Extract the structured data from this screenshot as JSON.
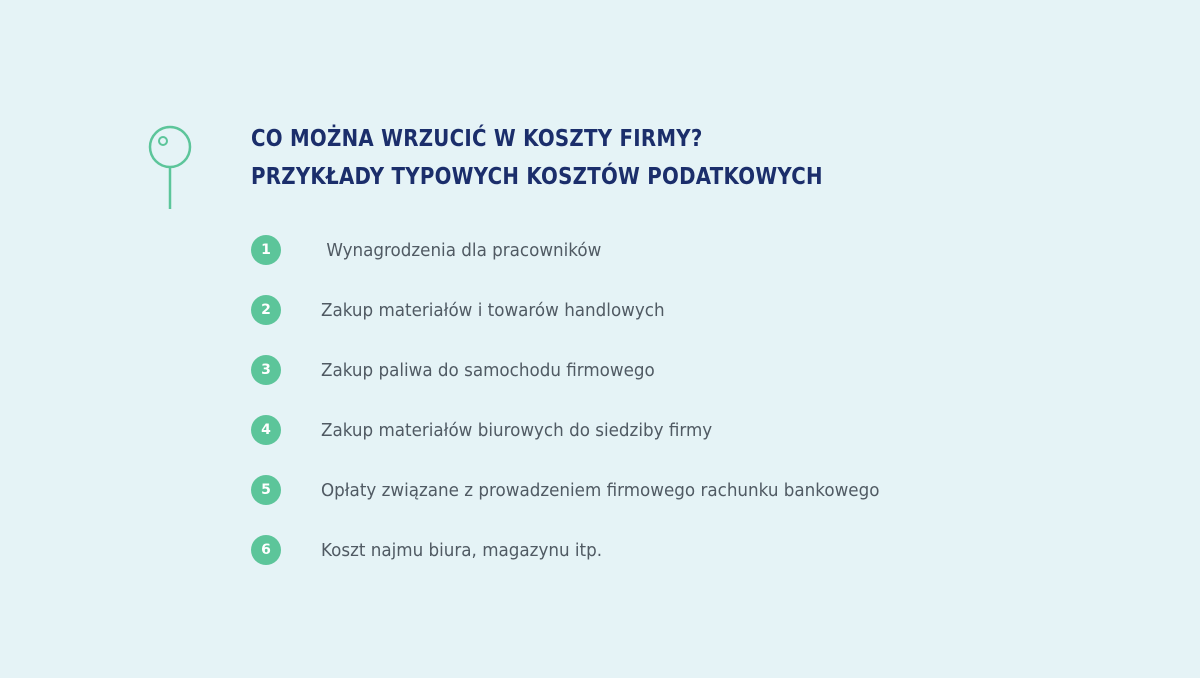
{
  "title": {
    "line1": "CO MOŻNA WRZUCIĆ W KOSZTY FIRMY?",
    "line2": "PRZYKŁADY TYPOWYCH KOSZTÓW PODATKOWYCH"
  },
  "icon": "pin-icon",
  "colors": {
    "background": "#e5f3f6",
    "accent": "#5cc59a",
    "title": "#1b2e6b",
    "text": "#505a63"
  },
  "items": [
    {
      "number": "1",
      "label": " Wynagrodzenia dla pracowników"
    },
    {
      "number": "2",
      "label": "Zakup materiałów i towarów handlowych"
    },
    {
      "number": "3",
      "label": "Zakup paliwa do samochodu firmowego"
    },
    {
      "number": "4",
      "label": "Zakup materiałów biurowych do siedziby firmy"
    },
    {
      "number": "5",
      "label": "Opłaty związane z prowadzeniem firmowego rachunku bankowego"
    },
    {
      "number": "6",
      "label": "Koszt najmu biura, magazynu itp."
    }
  ]
}
